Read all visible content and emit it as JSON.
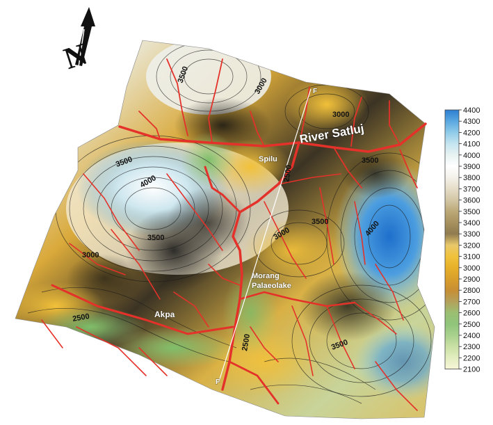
{
  "places": {
    "river": "River Satluj",
    "spilu": "Spilu",
    "morang_line1": "Morang",
    "morang_line2": "Palaeolake",
    "akpa": "Akpa",
    "section_top": "F",
    "section_bottom": "F"
  },
  "contour_labels": [
    "3500",
    "3000",
    "3500",
    "3000",
    "3500",
    "3000",
    "2500",
    "3500",
    "4000",
    "3500",
    "2500",
    "2500",
    "3000",
    "3500",
    "4000"
  ],
  "legend": {
    "ticks": [
      "4400",
      "4300",
      "4200",
      "4100",
      "4000",
      "3900",
      "3800",
      "3700",
      "3600",
      "3500",
      "3400",
      "3300",
      "3200",
      "3100",
      "3000",
      "2900",
      "2800",
      "2700",
      "2600",
      "2500",
      "2400",
      "2300",
      "2200",
      "2100"
    ],
    "colors": [
      "#2d7fd1",
      "#5aa7e0",
      "#8fcbe9",
      "#c4e4ef",
      "#e8f2f2",
      "#ffffff",
      "#f4f1ea",
      "#e6ddc8",
      "#d2c6a4",
      "#bca978",
      "#a7915f",
      "#8f7b4f",
      "#e8c86a",
      "#f0c23b",
      "#e7b02a",
      "#d99f2b",
      "#c78e34",
      "#b4a05a",
      "#9bbf72",
      "#8fc47a",
      "#a9d18e",
      "#c9e0a4",
      "#e3eec0",
      "#f7f6d8"
    ]
  },
  "north_arrow": {
    "label": "N"
  }
}
